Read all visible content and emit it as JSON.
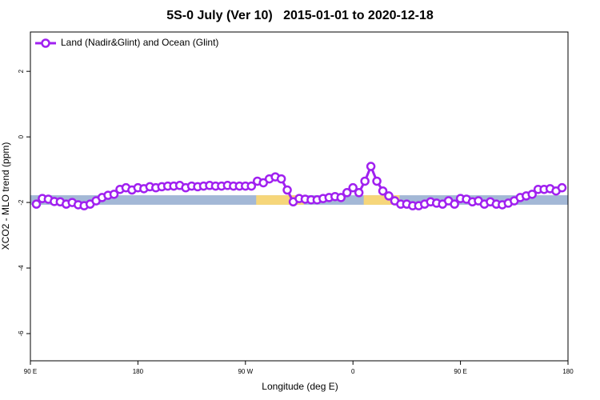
{
  "chart_data": {
    "type": "line",
    "title": "5S-0 July (Ver 10)   2015-01-01 to 2020-12-18",
    "x_label": "Longitude (deg E)",
    "y_label": "XCO2 - MLO trend (ppm)",
    "x": [
      95,
      100,
      105,
      110,
      115,
      120,
      125,
      130,
      135,
      140,
      145,
      150,
      155,
      160,
      165,
      170,
      175,
      180,
      185,
      190,
      195,
      200,
      205,
      210,
      215,
      220,
      225,
      230,
      235,
      240,
      245,
      250,
      255,
      260,
      265,
      270,
      275,
      280,
      285,
      290,
      295,
      300,
      305,
      310,
      315,
      320,
      325,
      330,
      335,
      340,
      345,
      350,
      355,
      360,
      365,
      370,
      375,
      380,
      385,
      390,
      395,
      400,
      405,
      410,
      415,
      420,
      425,
      430,
      435,
      440,
      445,
      450,
      455,
      460,
      465,
      470,
      475,
      480,
      485,
      490,
      495,
      500,
      505,
      510,
      515,
      520,
      525,
      530,
      535
    ],
    "series": [
      {
        "name": "Land (Nadir&Glint) and Ocean (Glint)",
        "color": "#a020f0",
        "values": [
          -2.05,
          -1.88,
          -1.9,
          -1.97,
          -1.98,
          -2.05,
          -2.0,
          -2.07,
          -2.1,
          -2.05,
          -1.95,
          -1.85,
          -1.78,
          -1.75,
          -1.6,
          -1.55,
          -1.62,
          -1.55,
          -1.58,
          -1.52,
          -1.55,
          -1.52,
          -1.5,
          -1.5,
          -1.48,
          -1.55,
          -1.5,
          -1.52,
          -1.5,
          -1.48,
          -1.5,
          -1.5,
          -1.48,
          -1.5,
          -1.5,
          -1.5,
          -1.5,
          -1.35,
          -1.4,
          -1.28,
          -1.22,
          -1.28,
          -1.62,
          -1.98,
          -1.88,
          -1.9,
          -1.92,
          -1.92,
          -1.88,
          -1.85,
          -1.82,
          -1.85,
          -1.7,
          -1.55,
          -1.7,
          -1.35,
          -0.9,
          -1.35,
          -1.65,
          -1.8,
          -1.95,
          -2.05,
          -2.05,
          -2.1,
          -2.1,
          -2.05,
          -1.98,
          -2.02,
          -2.05,
          -1.95,
          -2.05,
          -1.88,
          -1.9,
          -1.98,
          -1.95,
          -2.05,
          -1.98,
          -2.05,
          -2.07,
          -2.02,
          -1.95,
          -1.85,
          -1.8,
          -1.75,
          -1.6,
          -1.6,
          -1.58,
          -1.65,
          -1.55
        ]
      }
    ],
    "band": {
      "ylim": [
        -2.07,
        -1.78
      ],
      "segments": [
        {
          "xlim": [
            90,
            540
          ],
          "color": "#a3b8d6"
        },
        {
          "xlim": [
            279,
            319
          ],
          "color": "#f6d67a"
        },
        {
          "xlim": [
            369,
            399
          ],
          "color": "#f6d67a"
        }
      ]
    },
    "xlim": [
      90,
      540
    ],
    "xticks": [
      {
        "value": 90,
        "label": "90 E"
      },
      {
        "value": 180,
        "label": "180"
      },
      {
        "value": 270,
        "label": "90 W"
      },
      {
        "value": 360,
        "label": "0"
      },
      {
        "value": 450,
        "label": "90 E"
      },
      {
        "value": 540,
        "label": "180"
      }
    ],
    "ylim": [
      -6.83,
      3.2
    ],
    "yticks": [
      -6,
      -4,
      -2,
      0,
      2
    ],
    "legend": "top-left"
  }
}
